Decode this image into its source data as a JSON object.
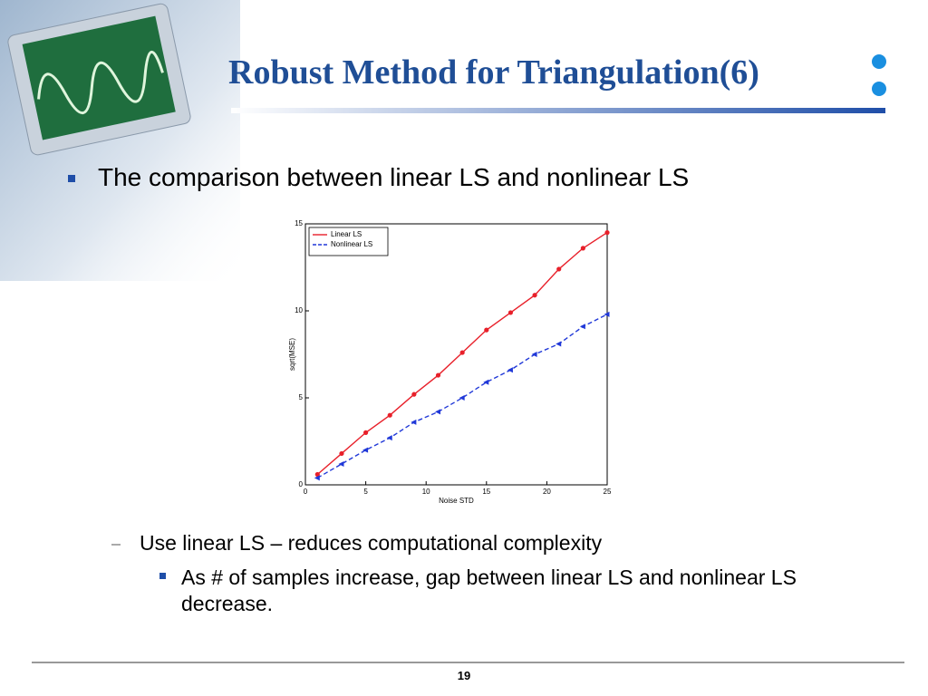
{
  "header": {
    "title": "Robust Method for Triangulation(6)"
  },
  "bullets": {
    "main": "The comparison between linear LS and nonlinear LS",
    "sub": "Use linear LS – reduces computational complexity",
    "subsub": "As # of samples increase, gap between linear LS and nonlinear LS decrease."
  },
  "chart_data": {
    "type": "line",
    "xlabel": "Noise STD",
    "ylabel": "sqrt(MSE)",
    "x": [
      1,
      3,
      5,
      7,
      9,
      11,
      13,
      15,
      17,
      19,
      21,
      23,
      25
    ],
    "series": [
      {
        "name": "Linear LS",
        "color": "#e8202a",
        "marker": "circle",
        "dashed": false,
        "values": [
          0.6,
          1.8,
          3.0,
          4.0,
          5.2,
          6.3,
          7.6,
          8.9,
          9.9,
          10.9,
          12.4,
          13.6,
          14.5
        ]
      },
      {
        "name": "Nonlinear LS",
        "color": "#2038d8",
        "marker": "triangle",
        "dashed": true,
        "values": [
          0.4,
          1.2,
          2.0,
          2.7,
          3.6,
          4.2,
          5.0,
          5.9,
          6.6,
          7.5,
          8.1,
          9.1,
          9.8
        ]
      }
    ],
    "xlim": [
      0,
      25
    ],
    "xticks": [
      0,
      5,
      10,
      15,
      20,
      25
    ],
    "ylim": [
      0,
      15
    ],
    "yticks": [
      0,
      5,
      10,
      15
    ],
    "legend": "upper-left"
  },
  "footer": {
    "page": "19"
  }
}
